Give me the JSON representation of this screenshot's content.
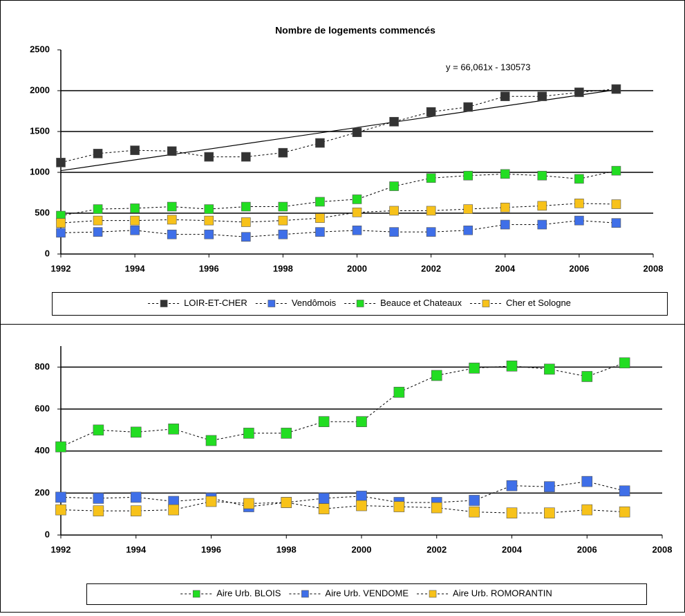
{
  "chart_data": [
    {
      "type": "line",
      "title": "Nombre de logements commencés",
      "x": [
        1992,
        1993,
        1994,
        1995,
        1996,
        1997,
        1998,
        1999,
        2000,
        2001,
        2002,
        2003,
        2004,
        2005,
        2006,
        2007
      ],
      "series": [
        {
          "name": "LOIR-ET-CHER",
          "color": "#333333",
          "values": [
            1120,
            1230,
            1270,
            1260,
            1190,
            1190,
            1240,
            1360,
            1490,
            1620,
            1740,
            1800,
            1930,
            1930,
            1980,
            2020
          ]
        },
        {
          "name": "Vendômois",
          "color": "#3f6fe8",
          "values": [
            260,
            270,
            290,
            240,
            240,
            210,
            240,
            270,
            290,
            270,
            270,
            290,
            360,
            360,
            410,
            380
          ]
        },
        {
          "name": "Beauce et Chateaux",
          "color": "#22dd22",
          "values": [
            470,
            550,
            560,
            580,
            550,
            580,
            580,
            640,
            670,
            830,
            930,
            960,
            980,
            960,
            920,
            1020
          ]
        },
        {
          "name": "Cher et Sologne",
          "color": "#f7c21a",
          "values": [
            380,
            410,
            410,
            420,
            410,
            390,
            410,
            440,
            510,
            530,
            530,
            550,
            570,
            590,
            620,
            610
          ]
        }
      ],
      "trendline": {
        "label": "y = 66,061x - 130573",
        "slope": 66.061,
        "intercept": -130573
      },
      "xlim": [
        1992,
        2008
      ],
      "xticks": [
        1992,
        1994,
        1996,
        1998,
        2000,
        2002,
        2004,
        2006,
        2008
      ],
      "ylim": [
        0,
        2500
      ],
      "yticks": [
        0,
        500,
        1000,
        1500,
        2000,
        2500
      ],
      "grid": true,
      "legend": "bottom"
    },
    {
      "type": "line",
      "x": [
        1992,
        1993,
        1994,
        1995,
        1996,
        1997,
        1998,
        1999,
        2000,
        2001,
        2002,
        2003,
        2004,
        2005,
        2006,
        2007
      ],
      "series": [
        {
          "name": "Aire Urb. BLOIS",
          "color": "#22dd22",
          "values": [
            420,
            500,
            490,
            505,
            450,
            485,
            485,
            540,
            540,
            680,
            760,
            795,
            805,
            790,
            755,
            820
          ]
        },
        {
          "name": "Aire Urb. VENDOME",
          "color": "#3f6fe8",
          "values": [
            180,
            175,
            180,
            160,
            175,
            135,
            155,
            175,
            185,
            155,
            155,
            165,
            235,
            230,
            255,
            210
          ]
        },
        {
          "name": "Aire Urb. ROMORANTIN",
          "color": "#f7c21a",
          "values": [
            120,
            115,
            115,
            120,
            160,
            150,
            155,
            125,
            140,
            135,
            130,
            110,
            105,
            105,
            120,
            110
          ]
        }
      ],
      "xlim": [
        1992,
        2008
      ],
      "xticks": [
        1992,
        1994,
        1996,
        1998,
        2000,
        2002,
        2004,
        2006,
        2008
      ],
      "ylim": [
        0,
        900
      ],
      "yticks": [
        0,
        200,
        400,
        600,
        800
      ],
      "grid": true,
      "legend": "bottom"
    }
  ]
}
